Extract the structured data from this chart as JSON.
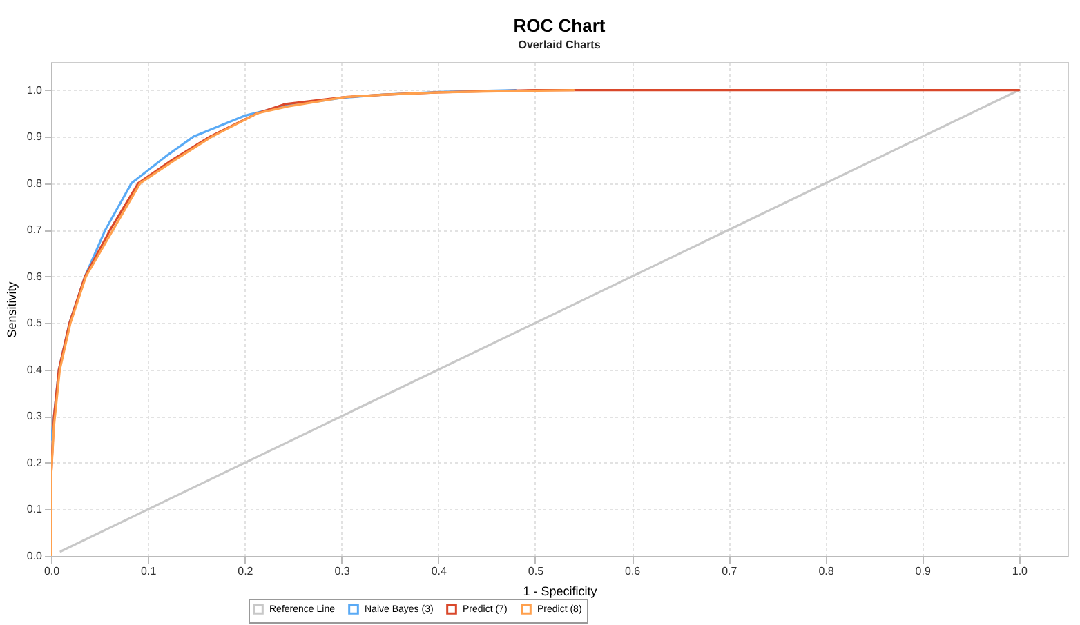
{
  "chart_data": {
    "type": "line",
    "title": "ROC Chart",
    "subtitle": "Overlaid Charts",
    "xlabel": "1 - Specificity",
    "ylabel": "Sensitivity",
    "xlim": [
      0,
      1.05
    ],
    "ylim": [
      0,
      1.06
    ],
    "xticks": [
      {
        "value": 0,
        "label": "0.0"
      },
      0.1,
      0.2,
      0.3,
      0.4,
      0.5,
      0.6,
      0.7,
      0.8,
      0.9,
      {
        "value": 1,
        "label": "1.0"
      }
    ],
    "yticks": [
      {
        "value": 0,
        "label": "0.0"
      },
      0.1,
      0.2,
      0.3,
      0.4,
      0.5,
      0.6,
      0.7,
      0.8,
      0.9,
      {
        "value": 1,
        "label": "1.0"
      }
    ],
    "grid": true,
    "legend": "bottom",
    "series": [
      {
        "name": "Reference Line",
        "color": "#c8c8c8",
        "x": [
          0.01,
          1
        ],
        "values": [
          0.01,
          1
        ]
      },
      {
        "name": "Naive Bayes (3)",
        "color": "#5aaaf5",
        "x": [
          0,
          0.003,
          0.008,
          0.019,
          0.035,
          0.056,
          0.083,
          0.12,
          0.147,
          0.2,
          0.24,
          0.3,
          0.34,
          0.4,
          0.48
        ],
        "values": [
          0.25,
          0.3,
          0.4,
          0.5,
          0.6,
          0.7,
          0.8,
          0.86,
          0.9,
          0.945,
          0.965,
          0.983,
          0.99,
          0.996,
          1.0
        ]
      },
      {
        "name": "Predict (7)",
        "color": "#d9482b",
        "x": [
          0,
          0.003,
          0.008,
          0.019,
          0.035,
          0.061,
          0.09,
          0.125,
          0.164,
          0.213,
          0.242,
          0.304,
          0.342,
          0.4,
          0.5,
          1.0
        ],
        "values": [
          0.17,
          0.3,
          0.4,
          0.5,
          0.6,
          0.7,
          0.8,
          0.85,
          0.9,
          0.95,
          0.97,
          0.985,
          0.99,
          0.995,
          1.0,
          1.0
        ]
      },
      {
        "name": "Predict (8)",
        "color": "#ffa04d",
        "x": [
          0,
          0,
          0.003,
          0.009,
          0.02,
          0.036,
          0.064,
          0.092,
          0.128,
          0.166,
          0.213,
          0.245,
          0.304,
          0.342,
          0.4,
          0.54
        ],
        "values": [
          0,
          0.17,
          0.28,
          0.4,
          0.5,
          0.6,
          0.7,
          0.8,
          0.85,
          0.9,
          0.95,
          0.965,
          0.985,
          0.99,
          0.995,
          1.0
        ]
      }
    ]
  }
}
